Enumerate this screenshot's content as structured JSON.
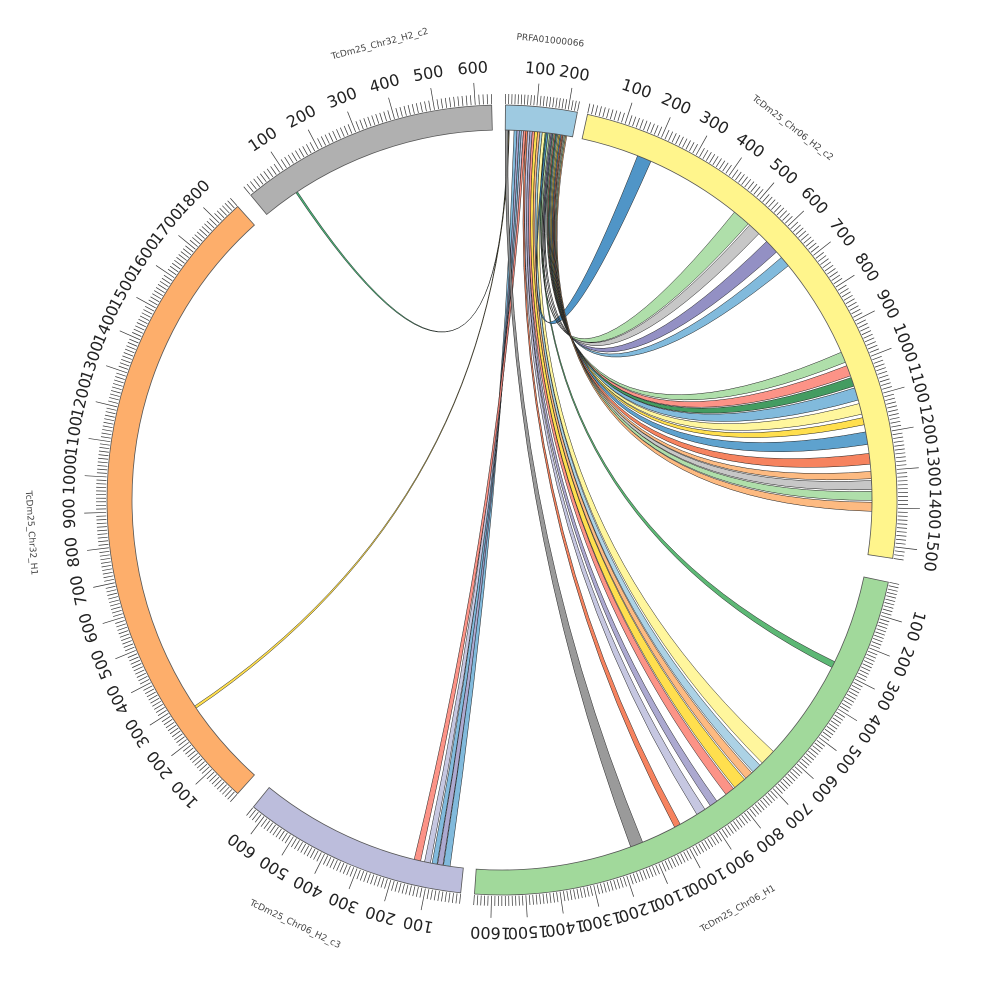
{
  "chart_data": {
    "type": "chord",
    "segments": [
      {
        "name": "PRFA01000066",
        "color": "#9ecae1",
        "start_deg": 0.5,
        "end_deg": 11.0,
        "length": 230,
        "label_step": 100,
        "labels": [
          "100",
          "200"
        ]
      },
      {
        "name": "TcDm25_Chr06_H2_c2",
        "color": "#fff58c",
        "start_deg": 12.5,
        "end_deg": 98.5,
        "length": 1530,
        "label_step": 100,
        "labels": [
          "100",
          "200",
          "300",
          "400",
          "500",
          "600",
          "700",
          "800",
          "900",
          "1000",
          "1100",
          "1200",
          "1300",
          "1400",
          "1500"
        ]
      },
      {
        "name": "TcDm25_Chr06_H1",
        "color": "#a1d99b",
        "start_deg": 102.0,
        "end_deg": 184.0,
        "length": 1650,
        "label_step": 100,
        "labels": [
          "100",
          "200",
          "300",
          "400",
          "500",
          "600",
          "700",
          "800",
          "900",
          "1000",
          "1100",
          "1200",
          "1300",
          "1400",
          "1500",
          "1600"
        ]
      },
      {
        "name": "TcDm25_Chr06_H2_c3",
        "color": "#bcbddc",
        "start_deg": 186.0,
        "end_deg": 219.0,
        "length": 640,
        "label_step": 100,
        "labels": [
          "100",
          "200",
          "300",
          "400",
          "500",
          "600"
        ]
      },
      {
        "name": "TcDm25_Chr32_H1",
        "color": "#fdae6b",
        "start_deg": 222.0,
        "end_deg": 318.0,
        "length": 1870,
        "label_step": 100,
        "labels": [
          "100",
          "200",
          "300",
          "400",
          "500",
          "600",
          "700",
          "800",
          "900",
          "1000",
          "1100",
          "1200",
          "1300",
          "1400",
          "1500",
          "1600",
          "1700",
          "1800"
        ]
      },
      {
        "name": "TcDm25_Chr32_H2_c2",
        "color": "#b0b0b0",
        "start_deg": 320.5,
        "end_deg": 358.5,
        "length": 640,
        "label_step": 100,
        "labels": [
          "100",
          "200",
          "300",
          "400",
          "500",
          "600"
        ]
      }
    ],
    "links": [
      {
        "src": "PRFA01000066",
        "s0": 8,
        "s1": 10,
        "dst": "TcDm25_Chr32_H2_c2",
        "d0": 95,
        "d1": 100,
        "color": "#2ca25f"
      },
      {
        "src": "PRFA01000066",
        "s0": 12,
        "s1": 14,
        "dst": "TcDm25_Chr32_H1",
        "d0": 268,
        "d1": 276,
        "color": "#ffd92f"
      },
      {
        "src": "PRFA01000066",
        "s0": 30,
        "s1": 40,
        "dst": "TcDm25_Chr06_H2_c3",
        "d0": 40,
        "d1": 60,
        "color": "#6baed6"
      },
      {
        "src": "PRFA01000066",
        "s0": 40,
        "s1": 48,
        "dst": "TcDm25_Chr06_H2_c3",
        "d0": 62,
        "d1": 78,
        "color": "#9e9ac8"
      },
      {
        "src": "PRFA01000066",
        "s0": 48,
        "s1": 55,
        "dst": "TcDm25_Chr06_H2_c3",
        "d0": 80,
        "d1": 95,
        "color": "#6baed6"
      },
      {
        "src": "PRFA01000066",
        "s0": 55,
        "s1": 62,
        "dst": "TcDm25_Chr06_H2_c3",
        "d0": 100,
        "d1": 118,
        "color": "#bcbddc"
      },
      {
        "src": "PRFA01000066",
        "s0": 62,
        "s1": 70,
        "dst": "TcDm25_Chr06_H2_c3",
        "d0": 130,
        "d1": 150,
        "color": "#fb8072"
      },
      {
        "src": "PRFA01000066",
        "s0": 0,
        "s1": 10,
        "dst": "TcDm25_Chr06_H1",
        "d0": 1120,
        "d1": 1160,
        "color": "#888888"
      },
      {
        "src": "PRFA01000066",
        "s0": 70,
        "s1": 76,
        "dst": "TcDm25_Chr06_H1",
        "d0": 990,
        "d1": 1010,
        "color": "#f46d43"
      },
      {
        "src": "PRFA01000066",
        "s0": 76,
        "s1": 84,
        "dst": "TcDm25_Chr06_H1",
        "d0": 900,
        "d1": 930,
        "color": "#bcbddc"
      },
      {
        "src": "PRFA01000066",
        "s0": 84,
        "s1": 92,
        "dst": "TcDm25_Chr06_H1",
        "d0": 855,
        "d1": 880,
        "color": "#9e9ac8"
      },
      {
        "src": "PRFA01000066",
        "s0": 92,
        "s1": 100,
        "dst": "TcDm25_Chr06_H1",
        "d0": 790,
        "d1": 820,
        "color": "#fb8072"
      },
      {
        "src": "PRFA01000066",
        "s0": 100,
        "s1": 110,
        "dst": "TcDm25_Chr06_H1",
        "d0": 745,
        "d1": 785,
        "color": "#ffd92f"
      },
      {
        "src": "PRFA01000066",
        "s0": 110,
        "s1": 118,
        "dst": "TcDm25_Chr06_H1",
        "d0": 715,
        "d1": 740,
        "color": "#fdae6b"
      },
      {
        "src": "PRFA01000066",
        "s0": 118,
        "s1": 126,
        "dst": "TcDm25_Chr06_H1",
        "d0": 680,
        "d1": 710,
        "color": "#9ecae1"
      },
      {
        "src": "PRFA01000066",
        "s0": 126,
        "s1": 136,
        "dst": "TcDm25_Chr06_H1",
        "d0": 620,
        "d1": 670,
        "color": "#fff58c"
      },
      {
        "src": "PRFA01000066",
        "s0": 136,
        "s1": 140,
        "dst": "TcDm25_Chr06_H1",
        "d0": 280,
        "d1": 300,
        "color": "#41ab5d"
      },
      {
        "src": "PRFA01000066",
        "s0": 140,
        "s1": 146,
        "dst": "TcDm25_Chr06_H2_c2",
        "d0": 160,
        "d1": 200,
        "color": "#3182bd"
      },
      {
        "src": "PRFA01000066",
        "s0": 146,
        "s1": 152,
        "dst": "TcDm25_Chr06_H2_c2",
        "d0": 470,
        "d1": 520,
        "color": "#a1d99b"
      },
      {
        "src": "PRFA01000066",
        "s0": 152,
        "s1": 156,
        "dst": "TcDm25_Chr06_H2_c2",
        "d0": 525,
        "d1": 560,
        "color": "#bdbdbd"
      },
      {
        "src": "PRFA01000066",
        "s0": 156,
        "s1": 160,
        "dst": "TcDm25_Chr06_H2_c2",
        "d0": 590,
        "d1": 630,
        "color": "#807dba"
      },
      {
        "src": "PRFA01000066",
        "s0": 160,
        "s1": 163,
        "dst": "TcDm25_Chr06_H2_c2",
        "d0": 650,
        "d1": 680,
        "color": "#6baed6"
      },
      {
        "src": "PRFA01000066",
        "s0": 163,
        "s1": 167,
        "dst": "TcDm25_Chr06_H2_c2",
        "d0": 960,
        "d1": 990,
        "color": "#a1d99b"
      },
      {
        "src": "PRFA01000066",
        "s0": 167,
        "s1": 171,
        "dst": "TcDm25_Chr06_H2_c2",
        "d0": 1000,
        "d1": 1030,
        "color": "#fb8072"
      },
      {
        "src": "PRFA01000066",
        "s0": 171,
        "s1": 175,
        "dst": "TcDm25_Chr06_H2_c2",
        "d0": 1035,
        "d1": 1060,
        "color": "#238b45"
      },
      {
        "src": "PRFA01000066",
        "s0": 175,
        "s1": 179,
        "dst": "TcDm25_Chr06_H2_c2",
        "d0": 1065,
        "d1": 1100,
        "color": "#6baed6"
      },
      {
        "src": "PRFA01000066",
        "s0": 179,
        "s1": 183,
        "dst": "TcDm25_Chr06_H2_c2",
        "d0": 1110,
        "d1": 1140,
        "color": "#fff58c"
      },
      {
        "src": "PRFA01000066",
        "s0": 183,
        "s1": 187,
        "dst": "TcDm25_Chr06_H2_c2",
        "d0": 1150,
        "d1": 1170,
        "color": "#ffd92f"
      },
      {
        "src": "PRFA01000066",
        "s0": 187,
        "s1": 191,
        "dst": "TcDm25_Chr06_H2_c2",
        "d0": 1190,
        "d1": 1225,
        "color": "#4292c6"
      },
      {
        "src": "PRFA01000066",
        "s0": 191,
        "s1": 195,
        "dst": "TcDm25_Chr06_H2_c2",
        "d0": 1250,
        "d1": 1280,
        "color": "#f46d43"
      },
      {
        "src": "PRFA01000066",
        "s0": 195,
        "s1": 198,
        "dst": "TcDm25_Chr06_H2_c2",
        "d0": 1300,
        "d1": 1320,
        "color": "#fdae6b"
      },
      {
        "src": "PRFA01000066",
        "s0": 198,
        "s1": 202,
        "dst": "TcDm25_Chr06_H2_c2",
        "d0": 1325,
        "d1": 1350,
        "color": "#bdbdbd"
      },
      {
        "src": "PRFA01000066",
        "s0": 202,
        "s1": 206,
        "dst": "TcDm25_Chr06_H2_c2",
        "d0": 1355,
        "d1": 1380,
        "color": "#a1d99b"
      },
      {
        "src": "PRFA01000066",
        "s0": 206,
        "s1": 210,
        "dst": "TcDm25_Chr06_H2_c2",
        "d0": 1385,
        "d1": 1410,
        "color": "#fdae6b"
      }
    ]
  }
}
